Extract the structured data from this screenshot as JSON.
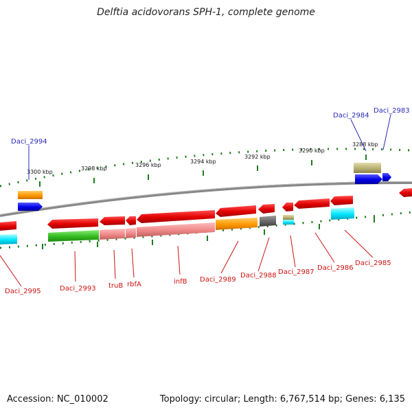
{
  "title": "Delftia acidovorans SPH-1, complete genome",
  "footer": {
    "accession": "Accession: NC_010002",
    "topology": "Topology: circular; Length: 6,767,514 bp; Genes: 6,135"
  },
  "scale_labels": [
    "3300 kbp",
    "3298 kbp",
    "3296 kbp",
    "3294 kbp",
    "3292 kbp",
    "3290 kbp",
    "3288 kbp"
  ],
  "gene_labels_top": [
    "Daci_2994",
    "Daci_2984",
    "Daci_2983"
  ],
  "gene_labels_bottom": [
    "Daci_2995",
    "Daci_2993",
    "truB",
    "rbfA",
    "infB",
    "Daci_2989",
    "Daci_2988",
    "Daci_2987",
    "Daci_2986",
    "Daci_2985"
  ],
  "colors": {
    "forward_label": "#2a2ab8",
    "reverse_label": "#cc1111",
    "cds": "#e00000",
    "blue_track": "#0000e0",
    "orange_track": "#ff9900",
    "green_track": "#33bb22",
    "cyan_track": "#00e5ff",
    "pink_track": "#ee8888",
    "olive_track": "#b8b070",
    "gray_track": "#666666",
    "backbone": "#888888",
    "tick": "#1d7a1d"
  }
}
